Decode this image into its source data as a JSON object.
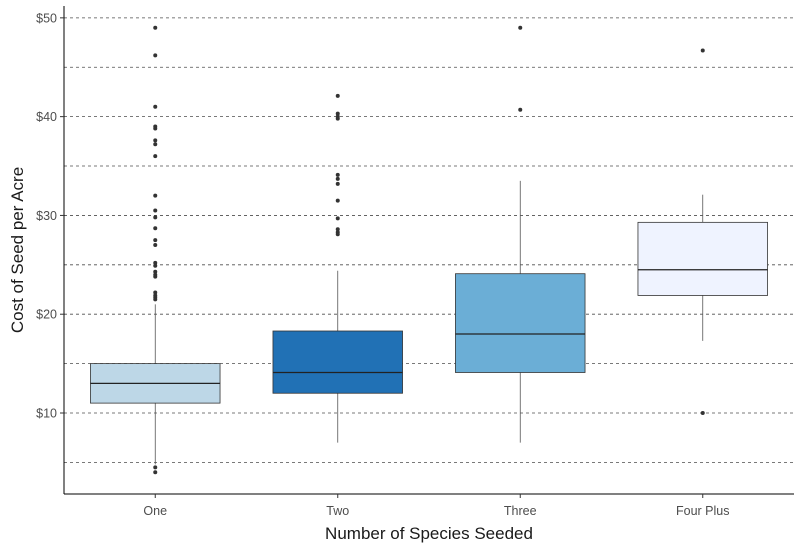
{
  "chart_data": {
    "type": "box",
    "title": "",
    "xlabel": "Number of Species Seeded",
    "ylabel": "Cost of Seed per Acre",
    "ylim": [
      1.8,
      51.2
    ],
    "y_ticks": [
      10,
      20,
      30,
      40,
      50
    ],
    "y_tick_labels": [
      "$10",
      "$20",
      "$30",
      "$40",
      "$50"
    ],
    "y_dashed_gridlines": [
      5,
      10,
      15,
      20,
      25,
      30,
      35,
      40,
      45,
      50
    ],
    "grid": "horizontal dashed",
    "legend": "none",
    "categories": [
      "One",
      "Two",
      "Three",
      "Four Plus"
    ],
    "boxes": [
      {
        "category": "One",
        "fill": "#bdd7e7",
        "whisker_low": 4.8,
        "q1": 11.0,
        "median": 13.0,
        "q3": 15.0,
        "whisker_high": 21.0,
        "outliers": [
          49.0,
          46.2,
          41.0,
          39.0,
          38.8,
          37.6,
          37.2,
          36.0,
          32.0,
          30.5,
          29.8,
          28.7,
          27.5,
          27.0,
          25.2,
          24.9,
          24.3,
          24.0,
          23.8,
          22.2,
          21.9,
          21.7,
          21.5,
          4.5,
          4.0
        ]
      },
      {
        "category": "Two",
        "fill": "#2171b5",
        "whisker_low": 7.0,
        "q1": 12.0,
        "median": 14.1,
        "q3": 18.3,
        "whisker_high": 24.4,
        "outliers": [
          42.1,
          40.3,
          40.0,
          39.8,
          34.1,
          33.7,
          33.2,
          31.5,
          29.7,
          28.6,
          28.3,
          28.1
        ]
      },
      {
        "category": "Three",
        "fill": "#6baed6",
        "whisker_low": 7.0,
        "q1": 14.1,
        "median": 18.0,
        "q3": 24.1,
        "whisker_high": 33.5,
        "outliers": [
          49.0,
          40.7
        ]
      },
      {
        "category": "Four Plus",
        "fill": "#eff3ff",
        "whisker_low": 17.3,
        "q1": 21.9,
        "median": 24.5,
        "q3": 29.3,
        "whisker_high": 32.1,
        "outliers": [
          46.7,
          10.0
        ]
      }
    ]
  }
}
